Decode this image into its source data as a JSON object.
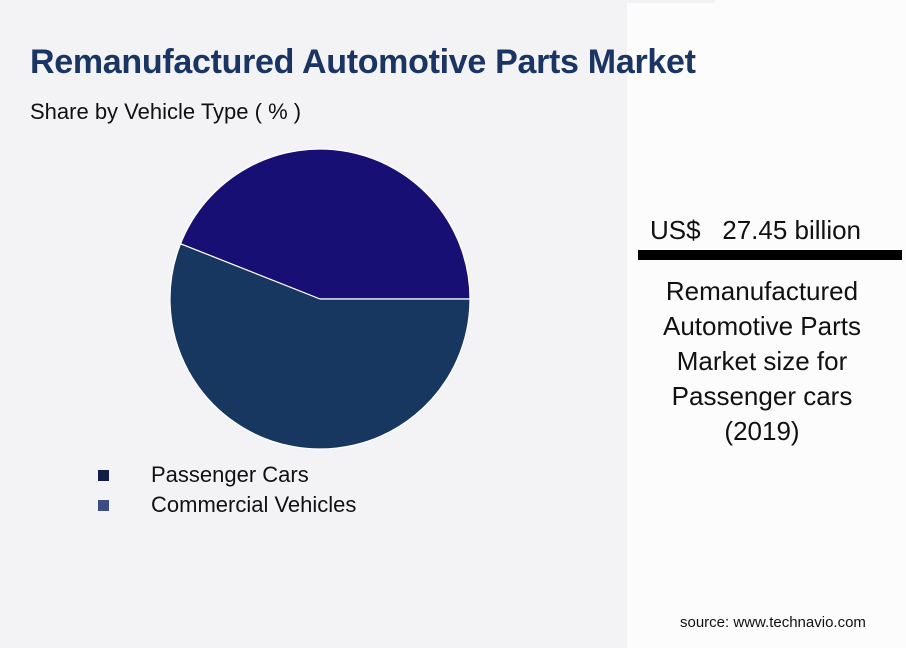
{
  "header": {
    "title": "Remanufactured Automotive Parts Market",
    "subtitle": "Share by Vehicle Type ( % )"
  },
  "legend": {
    "items": [
      {
        "label": "Passenger Cars",
        "color": "#0f1f4a"
      },
      {
        "label": "Commercial Vehicles",
        "color": "#3a4e84"
      }
    ]
  },
  "kpi": {
    "value": "US$   27.45 billion",
    "description": "Remanufactured Automotive Parts Market size for Passenger cars (2019)"
  },
  "footer": {
    "source": "source: www.technavio.com"
  },
  "colors": {
    "title": "#1a3563",
    "slice_passenger": "#170f74",
    "slice_commercial": "#173660",
    "background": "#f3f3f6",
    "panel": "#fcfcfc"
  },
  "chart_data": {
    "type": "pie",
    "title": "Remanufactured Automotive Parts Market",
    "subtitle": "Share by Vehicle Type ( % )",
    "categories": [
      "Passenger Cars",
      "Commercial Vehicles"
    ],
    "values": [
      44,
      56
    ],
    "colors": [
      "#170f74",
      "#173660"
    ],
    "start_angle_deg": 0,
    "direction": "counterclockwise",
    "data_labels": false,
    "legend_position": "bottom-left"
  }
}
